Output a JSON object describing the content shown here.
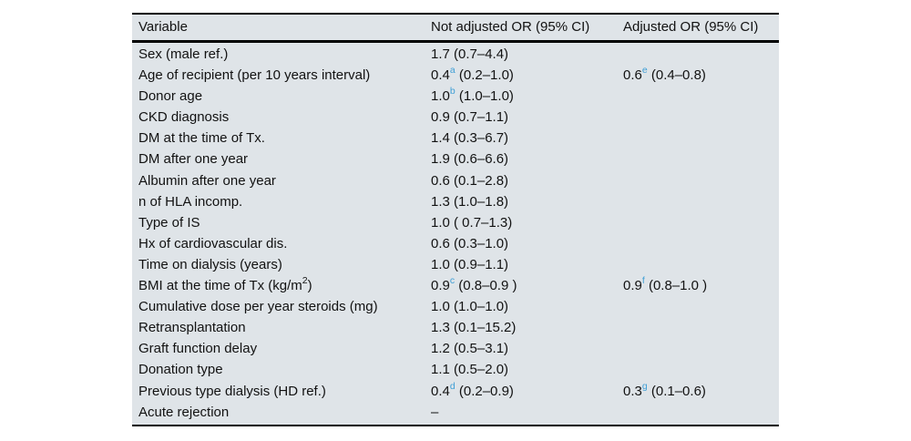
{
  "table": {
    "columns": [
      "Variable",
      "Not adjusted OR (95% CI)",
      "Adjusted OR (95% CI)"
    ],
    "rows": [
      {
        "variable": "Sex (male ref.)",
        "not_adjusted": "1.7 (0.7–4.4)",
        "adjusted": ""
      },
      {
        "variable": "Age of recipient (per 10 years interval)",
        "not_adjusted": "0.4^a (0.2–1.0)",
        "adjusted": "0.6^e (0.4–0.8)"
      },
      {
        "variable": "Donor age",
        "not_adjusted": "1.0^b (1.0–1.0)",
        "adjusted": ""
      },
      {
        "variable": "CKD diagnosis",
        "not_adjusted": "0.9 (0.7–1.1)",
        "adjusted": ""
      },
      {
        "variable": "DM at the time of Tx.",
        "not_adjusted": "1.4 (0.3–6.7)",
        "adjusted": ""
      },
      {
        "variable": "DM after one year",
        "not_adjusted": "1.9 (0.6–6.6)",
        "adjusted": ""
      },
      {
        "variable": "Albumin after one year",
        "not_adjusted": "0.6 (0.1–2.8)",
        "adjusted": ""
      },
      {
        "variable": "n of HLA incomp.",
        "not_adjusted": "1.3 (1.0–1.8)",
        "adjusted": ""
      },
      {
        "variable": "Type of IS",
        "not_adjusted": "1.0 ( 0.7–1.3)",
        "adjusted": ""
      },
      {
        "variable": "Hx of cardiovascular dis.",
        "not_adjusted": "0.6 (0.3–1.0)",
        "adjusted": ""
      },
      {
        "variable": "Time on dialysis (years)",
        "not_adjusted": "1.0 (0.9–1.1)",
        "adjusted": ""
      },
      {
        "variable": "BMI at the time of Tx (kg/m^2)",
        "not_adjusted": "0.9^c (0.8–0.9 )",
        "adjusted": "0.9^f (0.8–1.0 )"
      },
      {
        "variable": "Cumulative dose per year steroids (mg)",
        "not_adjusted": "1.0 (1.0–1.0)",
        "adjusted": ""
      },
      {
        "variable": "Retransplantation",
        "not_adjusted": "1.3 (0.1–15.2)",
        "adjusted": ""
      },
      {
        "variable": "Graft function delay",
        "not_adjusted": "1.2 (0.5–3.1)",
        "adjusted": ""
      },
      {
        "variable": "Donation type",
        "not_adjusted": "1.1 (0.5–2.0)",
        "adjusted": ""
      },
      {
        "variable": "Previous type dialysis (HD ref.)",
        "not_adjusted": "0.4^d (0.2–0.9)",
        "adjusted": "0.3^g (0.1–0.6)"
      },
      {
        "variable": "Acute rejection",
        "not_adjusted": "–",
        "adjusted": ""
      }
    ],
    "colors": {
      "background": "#dfe4e8",
      "rule": "#000000",
      "text": "#121212",
      "superscript": "#3f9fd6",
      "page": "#ffffff"
    }
  }
}
